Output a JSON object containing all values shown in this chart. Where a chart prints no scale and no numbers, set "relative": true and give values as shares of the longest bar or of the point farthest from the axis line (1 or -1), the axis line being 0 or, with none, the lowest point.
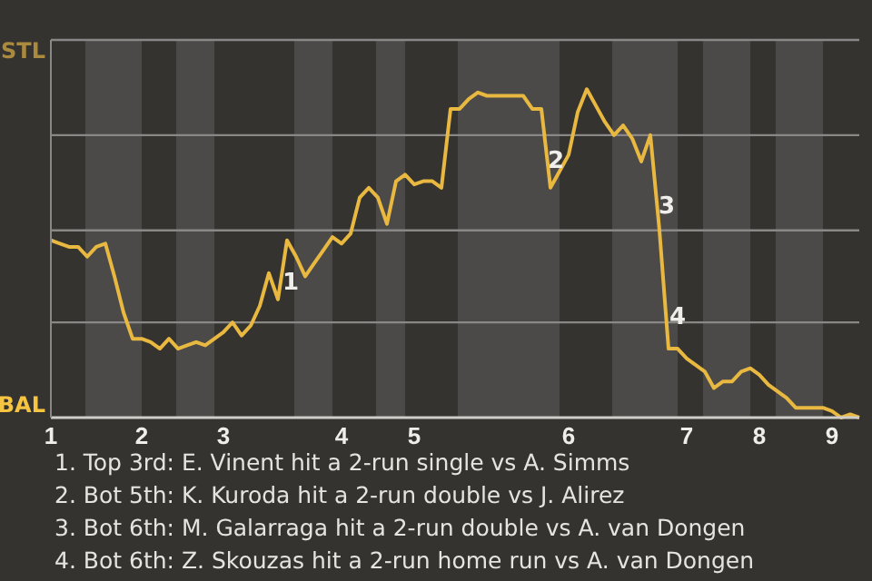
{
  "chart_data": {
    "type": "line",
    "relative": true,
    "categories": [
      "1",
      null,
      null,
      null,
      null,
      null,
      null,
      null,
      null,
      null,
      "2",
      null,
      null,
      null,
      null,
      null,
      null,
      null,
      null,
      "3",
      null,
      null,
      null,
      null,
      null,
      null,
      null,
      null,
      null,
      null,
      null,
      null,
      "4",
      null,
      null,
      null,
      null,
      null,
      null,
      null,
      "5",
      null,
      null,
      null,
      null,
      null,
      null,
      null,
      null,
      null,
      null,
      null,
      null,
      null,
      null,
      null,
      null,
      "6",
      null,
      null,
      null,
      null,
      null,
      null,
      null,
      null,
      null,
      null,
      null,
      null,
      "7",
      null,
      null,
      null,
      null,
      null,
      null,
      null,
      "8",
      null,
      null,
      null,
      null,
      null,
      null,
      null,
      "9",
      null,
      null,
      null
    ],
    "series": [
      {
        "color": "#e8b840",
        "values": [
          0.54,
          0.53,
          0.52,
          0.52,
          0.49,
          0.52,
          0.53,
          0.43,
          0.32,
          0.24,
          0.24,
          0.23,
          0.21,
          0.24,
          0.21,
          0.22,
          0.23,
          0.22,
          0.24,
          0.26,
          0.29,
          0.25,
          0.28,
          0.34,
          0.44,
          0.36,
          0.54,
          0.49,
          0.43,
          0.47,
          0.51,
          0.55,
          0.53,
          0.56,
          0.67,
          0.7,
          0.67,
          0.59,
          0.72,
          0.74,
          0.71,
          0.72,
          0.72,
          0.7,
          0.94,
          0.94,
          0.97,
          0.99,
          0.98,
          0.98,
          0.98,
          0.98,
          0.98,
          0.94,
          0.94,
          0.7,
          0.75,
          0.8,
          0.93,
          1,
          0.95,
          0.9,
          0.86,
          0.89,
          0.85,
          0.78,
          0.86,
          0.57,
          0.21,
          0.21,
          0.18,
          0.16,
          0.14,
          0.09,
          0.11,
          0.11,
          0.14,
          0.15,
          0.13,
          0.1,
          0.08,
          0.06,
          0.03,
          0.03,
          0.03,
          0.03,
          0.02,
          0,
          0.01,
          0
        ]
      }
    ],
    "ref_lines": [
      {
        "axis": "y",
        "value": 0.29,
        "color": "#8a8886"
      },
      {
        "axis": "y",
        "value": 0.57,
        "color": "#8a8886"
      },
      {
        "axis": "y",
        "value": 0.86,
        "color": "#8a8886"
      },
      {
        "axis": "y",
        "value": 1.15,
        "color": "#8a8886"
      }
    ],
    "annotations": [
      "STL",
      "BAL",
      "1",
      "2",
      "3",
      "4",
      "1. Top 3rd: E. Vinent hit a 2-run single vs A. Simms",
      "2. Bot 5th: K. Kuroda hit a 2-run double vs J. Alirez",
      "3. Bot 6th: M. Galarraga hit a 2-run double vs A. van Dongen",
      "4. Bot 6th: Z. Skouzas hit a 2-run home run vs A. van Dongen"
    ]
  }
}
